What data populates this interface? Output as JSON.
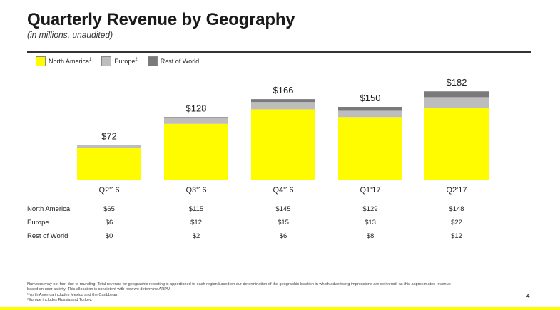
{
  "header": {
    "title": "Quarterly Revenue by Geography",
    "subtitle": "(in millions, unaudited)"
  },
  "legend": [
    {
      "label": "North America",
      "sup": "1",
      "color": "#fffc00"
    },
    {
      "label": "Europe",
      "sup": "2",
      "color": "#bdbdbd"
    },
    {
      "label": "Rest of World",
      "sup": "",
      "color": "#7a7a7a"
    }
  ],
  "chart_data": {
    "type": "bar",
    "stacked": true,
    "title": "Quarterly Revenue by Geography",
    "categories": [
      "Q2'16",
      "Q3'16",
      "Q4'16",
      "Q1'17",
      "Q2'17"
    ],
    "series": [
      {
        "name": "North America",
        "color": "#fffc00",
        "values": [
          65,
          115,
          145,
          129,
          148
        ]
      },
      {
        "name": "Europe",
        "color": "#bdbdbd",
        "values": [
          6,
          12,
          15,
          13,
          22
        ]
      },
      {
        "name": "Rest of World",
        "color": "#7a7a7a",
        "values": [
          0,
          2,
          6,
          8,
          12
        ]
      }
    ],
    "totals": [
      "$72",
      "$128",
      "$166",
      "$150",
      "$182"
    ],
    "ylim": [
      0,
      182
    ],
    "grid": false,
    "legend_position": "top-left"
  },
  "table": {
    "rows": [
      {
        "label": "North America",
        "values": [
          "$65",
          "$115",
          "$145",
          "$129",
          "$148"
        ]
      },
      {
        "label": "Europe",
        "values": [
          "$6",
          "$12",
          "$15",
          "$13",
          "$22"
        ]
      },
      {
        "label": "Rest of World",
        "values": [
          "$0",
          "$2",
          "$6",
          "$8",
          "$12"
        ]
      }
    ]
  },
  "footnotes": [
    "Numbers may not foot due to rounding.  Total revenue for geographic reporting is apportioned to each region based on our determination of the geographic location in which advertising impressions are delivered, as this approximates revenue",
    "based on user activity.  This allocation is consistent with how we determine ARPU.",
    "¹North America includes Mexico and the Caribbean.",
    "²Europe includes Russia and Turkey."
  ],
  "page_number": "4"
}
